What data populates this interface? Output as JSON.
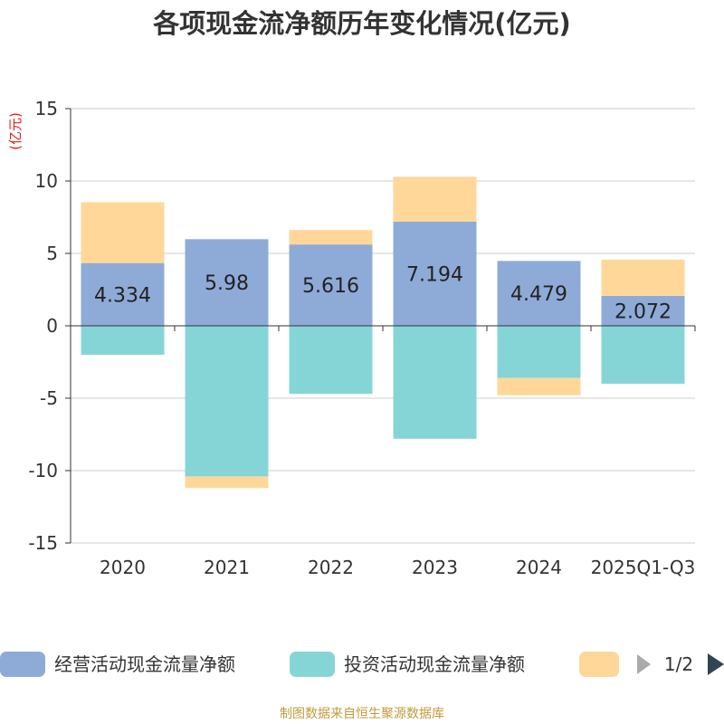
{
  "colors": {
    "operating": "#8eabd8",
    "investing": "#86d5d6",
    "financing": "#ffd798",
    "grid": "#cccccc",
    "axis": "#333333",
    "unit": "#e0201b",
    "footer": "#c19a3a",
    "pager_arrow_prev": "#aaaaaa",
    "pager_arrow_next": "#2f4554"
  },
  "chart_data": {
    "type": "bar",
    "stacked": true,
    "title": "各项现金流净额历年变化情况(亿元)",
    "xlabel": "",
    "ylabel": "(亿元)",
    "ylim": [
      -15,
      15
    ],
    "yticks": [
      15,
      10,
      5,
      0,
      -5,
      -10,
      -15
    ],
    "ytick_labels": [
      "15",
      "10",
      "5",
      "0",
      "-5",
      "-10",
      "-15"
    ],
    "categories": [
      "2020",
      "2021",
      "2022",
      "2023",
      "2024",
      "2025Q1-Q3"
    ],
    "series": [
      {
        "name": "经营活动现金流量净额",
        "key": "operating",
        "values": [
          4.334,
          5.98,
          5.616,
          7.194,
          4.479,
          2.072
        ],
        "labels": [
          "4.334",
          "5.98",
          "5.616",
          "7.194",
          "4.479",
          "2.072"
        ]
      },
      {
        "name": "投资活动现金流量净额",
        "key": "investing",
        "values": [
          -2.0,
          -10.4,
          -4.7,
          -7.8,
          -3.6,
          -4.0
        ]
      },
      {
        "name": "",
        "key": "financing",
        "values": [
          4.2,
          -0.8,
          1.0,
          3.1,
          -1.2,
          2.5
        ]
      }
    ],
    "grid": true,
    "legend_position": "bottom"
  },
  "legend": {
    "items": [
      {
        "label": "经营活动现金流量净额"
      },
      {
        "label": "投资活动现金流量净额"
      },
      {
        "label": ""
      }
    ],
    "page_text": "1/2"
  },
  "footer": {
    "source": "制图数据来自恒生聚源数据库"
  }
}
